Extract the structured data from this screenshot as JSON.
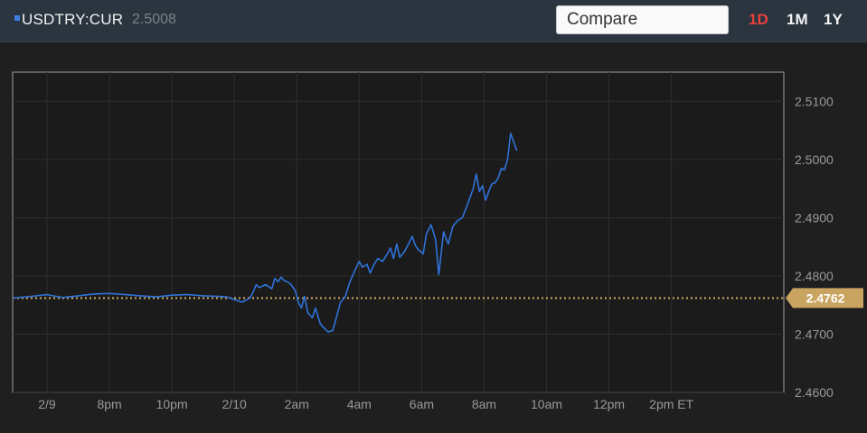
{
  "header": {
    "symbol": "USDTRY:CUR",
    "price": "2.5008",
    "compare_placeholder": "Compare",
    "ranges": [
      {
        "label": "1D",
        "active": true
      },
      {
        "label": "1M",
        "active": false
      },
      {
        "label": "1Y",
        "active": false
      }
    ]
  },
  "colors": {
    "line": "#2f72d8",
    "reference": "#c9a461",
    "active_range": "#e8413b"
  },
  "chart_data": {
    "type": "line",
    "ylim": [
      2.46,
      2.515
    ],
    "yticks": [
      "2.5100",
      "2.5000",
      "2.4900",
      "2.4800",
      "2.4700",
      "2.4600"
    ],
    "ytick_values": [
      2.51,
      2.5,
      2.49,
      2.48,
      2.47,
      2.46
    ],
    "xticks": [
      "2/9",
      "8pm",
      "10pm",
      "2/10",
      "2am",
      "4am",
      "6am",
      "8am",
      "10am",
      "12pm",
      "2pm ET"
    ],
    "xtick_hours": [
      -6,
      -4,
      -2,
      0,
      2,
      4,
      6,
      8,
      10,
      12,
      14
    ],
    "xlim_hours": [
      -7.1,
      17.6
    ],
    "reference_line": {
      "value": 2.4762,
      "label": "2.4762"
    },
    "series": [
      {
        "x_hours": [
          -7.1,
          -6.5,
          -6.0,
          -5.5,
          -5.0,
          -4.5,
          -4.0,
          -3.5,
          -3.0,
          -2.5,
          -2.0,
          -1.5,
          -1.0,
          -0.5,
          -0.25,
          0.25,
          0.5,
          0.6,
          0.7,
          0.8,
          1.0,
          1.2,
          1.3,
          1.4,
          1.5,
          1.6,
          1.7,
          1.8,
          1.95,
          2.05,
          2.15,
          2.25,
          2.35,
          2.5,
          2.6,
          2.75,
          2.85,
          3.0,
          3.15,
          3.3,
          3.4,
          3.55,
          3.7,
          3.85,
          4.0,
          4.1,
          4.25,
          4.35,
          4.5,
          4.6,
          4.75,
          4.9,
          5.0,
          5.1,
          5.2,
          5.3,
          5.45,
          5.55,
          5.7,
          5.8,
          5.9,
          6.05,
          6.15,
          6.3,
          6.45,
          6.55,
          6.7,
          6.85,
          7.0,
          7.15,
          7.3,
          7.45,
          7.55,
          7.65,
          7.75,
          7.85,
          7.95,
          8.05,
          8.15,
          8.25,
          8.35,
          8.45,
          8.55,
          8.65,
          8.75,
          8.85,
          8.95,
          9.05
        ],
        "y": [
          2.4762,
          2.4765,
          2.4768,
          2.4763,
          2.4766,
          2.4769,
          2.477,
          2.4768,
          2.4766,
          2.4764,
          2.4767,
          2.4768,
          2.4766,
          2.4765,
          2.4764,
          2.4755,
          2.4762,
          2.4772,
          2.4785,
          2.478,
          2.4785,
          2.4778,
          2.4796,
          2.479,
          2.4798,
          2.4792,
          2.479,
          2.4786,
          2.4775,
          2.4755,
          2.4745,
          2.4765,
          2.4737,
          2.4728,
          2.4745,
          2.4718,
          2.4712,
          2.4704,
          2.4706,
          2.4735,
          2.4755,
          2.4764,
          2.479,
          2.4808,
          2.4825,
          2.4815,
          2.482,
          2.4805,
          2.4822,
          2.483,
          2.4825,
          2.4838,
          2.4848,
          2.483,
          2.4855,
          2.4832,
          2.4842,
          2.4852,
          2.4868,
          2.4852,
          2.4845,
          2.4838,
          2.4872,
          2.4888,
          2.4862,
          2.4802,
          2.4876,
          2.4855,
          2.4885,
          2.4895,
          2.49,
          2.492,
          2.4935,
          2.495,
          2.4975,
          2.4945,
          2.4955,
          2.493,
          2.4945,
          2.4958,
          2.496,
          2.4968,
          2.4985,
          2.4982,
          2.5,
          2.5045,
          2.503,
          2.5015
        ]
      }
    ]
  }
}
